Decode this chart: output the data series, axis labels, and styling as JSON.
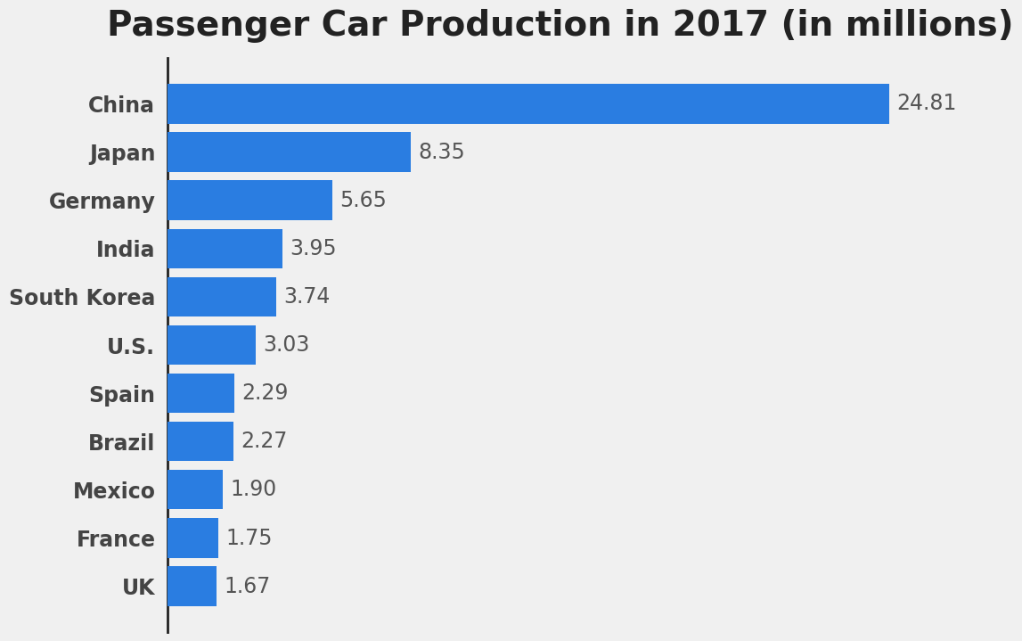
{
  "title": "Passenger Car Production in 2017 (in millions)",
  "categories": [
    "China",
    "Japan",
    "Germany",
    "India",
    "South Korea",
    "U.S.",
    "Spain",
    "Brazil",
    "Mexico",
    "France",
    "UK"
  ],
  "values": [
    24.81,
    8.35,
    5.65,
    3.95,
    3.74,
    3.03,
    2.29,
    2.27,
    1.9,
    1.75,
    1.67
  ],
  "bar_color": "#2a7de1",
  "background_color": "#f0f0f0",
  "title_fontsize": 28,
  "label_fontsize": 17,
  "value_fontsize": 17,
  "xlim": [
    0,
    27
  ],
  "bar_height": 0.82
}
